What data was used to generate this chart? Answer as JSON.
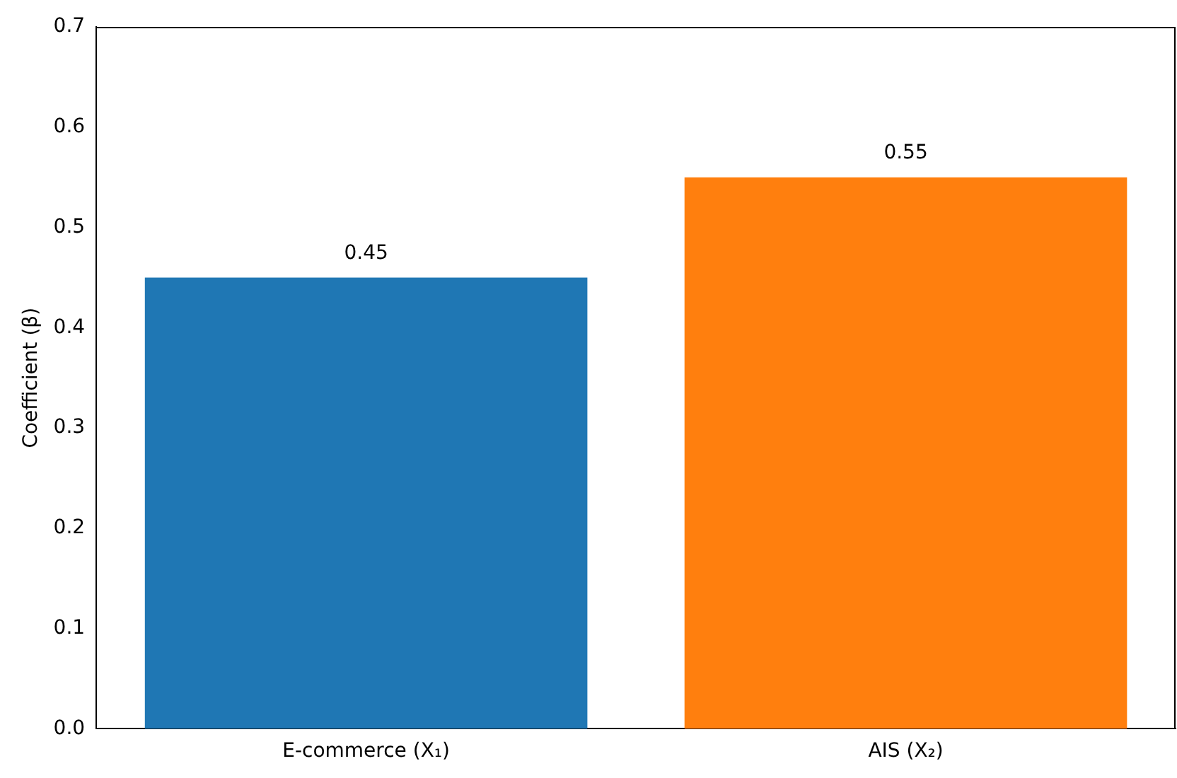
{
  "chart_data": {
    "type": "bar",
    "ylabel": "Coefficient (β)",
    "categories": [
      "E-commerce (X₁)",
      "AIS (X₂)"
    ],
    "values": [
      0.45,
      0.55
    ],
    "colors": [
      "#1f77b4",
      "#ff7f0e"
    ],
    "ylim": [
      0,
      0.7
    ],
    "yticks": [
      {
        "value": 0,
        "label": "0.0"
      },
      0.1,
      0.2,
      0.3,
      0.4,
      0.5,
      0.6,
      0.7
    ],
    "grid": false,
    "legend": false,
    "data_labels": true
  }
}
